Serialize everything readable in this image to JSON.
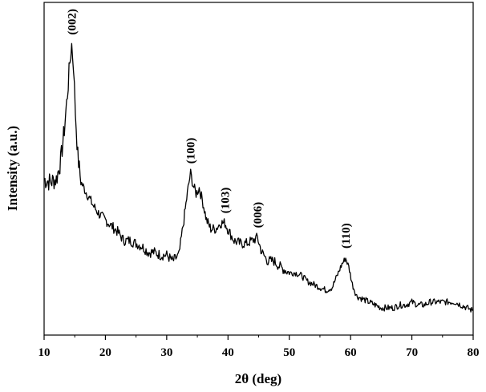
{
  "chart_data": {
    "type": "line",
    "title": "",
    "xlabel": "2θ (deg)",
    "ylabel": "Intensity (a.u.)",
    "xlim": [
      10,
      80
    ],
    "ylim": [
      0,
      1
    ],
    "xticks": [
      "10",
      "20",
      "30",
      "40",
      "50",
      "60",
      "70",
      "80"
    ],
    "grid": false,
    "legend": "none",
    "series_color": "#000000",
    "series": [
      {
        "x": [
          10,
          11,
          12,
          12.7,
          13.3,
          13.8,
          14.2,
          14.5,
          14.8,
          15.1,
          15.5,
          16,
          16.5,
          17,
          18,
          19,
          20,
          21,
          22,
          23,
          24,
          25,
          26,
          27,
          28,
          29,
          30,
          31,
          32,
          32.8,
          33.5,
          33.9,
          34.3,
          34.8,
          35.3,
          35.8,
          36.5,
          37.2,
          38,
          38.8,
          39.5,
          40.2,
          41,
          42,
          43,
          44,
          44.8,
          45.5,
          46.5,
          47.5,
          48.5,
          50,
          51,
          52,
          53,
          54,
          55,
          56,
          57,
          58,
          58.6,
          59.2,
          59.7,
          60.3,
          61,
          62,
          63,
          64,
          65,
          66,
          67,
          68,
          69,
          70,
          71,
          72,
          73,
          74,
          75,
          76,
          77,
          78,
          79,
          80
        ],
        "y": [
          0.47,
          0.46,
          0.47,
          0.53,
          0.64,
          0.76,
          0.87,
          0.93,
          0.86,
          0.7,
          0.55,
          0.46,
          0.44,
          0.42,
          0.38,
          0.35,
          0.33,
          0.31,
          0.29,
          0.26,
          0.26,
          0.25,
          0.24,
          0.22,
          0.22,
          0.21,
          0.21,
          0.19,
          0.21,
          0.33,
          0.44,
          0.49,
          0.45,
          0.42,
          0.44,
          0.4,
          0.33,
          0.3,
          0.3,
          0.32,
          0.32,
          0.29,
          0.26,
          0.25,
          0.25,
          0.26,
          0.27,
          0.22,
          0.19,
          0.19,
          0.17,
          0.15,
          0.15,
          0.14,
          0.12,
          0.11,
          0.1,
          0.09,
          0.1,
          0.15,
          0.18,
          0.2,
          0.17,
          0.11,
          0.07,
          0.06,
          0.05,
          0.04,
          0.03,
          0.03,
          0.03,
          0.04,
          0.04,
          0.05,
          0.04,
          0.04,
          0.05,
          0.05,
          0.05,
          0.05,
          0.05,
          0.04,
          0.03,
          0.02
        ]
      }
    ],
    "annotations": [
      {
        "text": "(002)",
        "x": 14.5,
        "y": 0.93
      },
      {
        "text": "(100)",
        "x": 33.9,
        "y": 0.49
      },
      {
        "text": "(103)",
        "x": 39.5,
        "y": 0.32
      },
      {
        "text": "(006)",
        "x": 44.8,
        "y": 0.27
      },
      {
        "text": "(110)",
        "x": 59.2,
        "y": 0.2
      }
    ]
  }
}
